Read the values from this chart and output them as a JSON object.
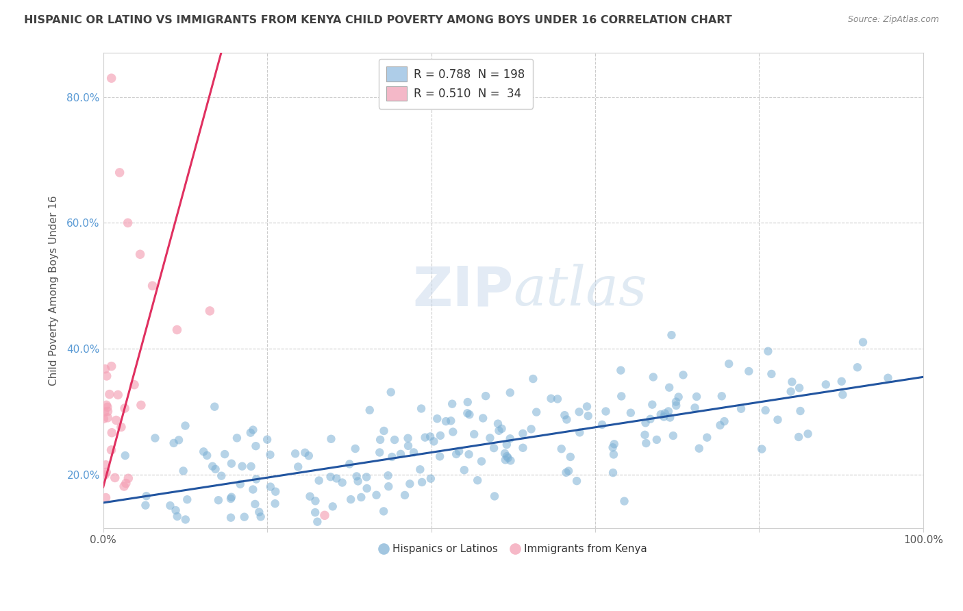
{
  "title": "HISPANIC OR LATINO VS IMMIGRANTS FROM KENYA CHILD POVERTY AMONG BOYS UNDER 16 CORRELATION CHART",
  "source": "Source: ZipAtlas.com",
  "ylabel": "Child Poverty Among Boys Under 16",
  "watermark_zip": "ZIP",
  "watermark_atlas": "atlas",
  "legend_line1": "R = 0.788  N = 198",
  "legend_line2": "R = 0.510  N =  34",
  "legend_label1": "Hispanics or Latinos",
  "legend_label2": "Immigrants from Kenya",
  "blue_color": "#7bafd4",
  "pink_color": "#f4a0b5",
  "blue_line_color": "#2255a0",
  "pink_line_color": "#e03060",
  "blue_legend_color": "#aecde8",
  "pink_legend_color": "#f4b8c8",
  "grid_color": "#cccccc",
  "background_color": "#ffffff",
  "title_color": "#404040",
  "source_color": "#888888",
  "ytick_color": "#5b9bd5",
  "xmin": 0.0,
  "xmax": 1.0,
  "ymin": 0.115,
  "ymax": 0.87,
  "yticks": [
    0.2,
    0.4,
    0.6,
    0.8
  ],
  "ytick_labels": [
    "20.0%",
    "40.0%",
    "60.0%",
    "80.0%"
  ],
  "xticks": [
    0.0,
    0.2,
    0.4,
    0.6,
    0.8,
    1.0
  ],
  "xtick_labels": [
    "0.0%",
    "",
    "",
    "",
    "",
    "100.0%"
  ]
}
